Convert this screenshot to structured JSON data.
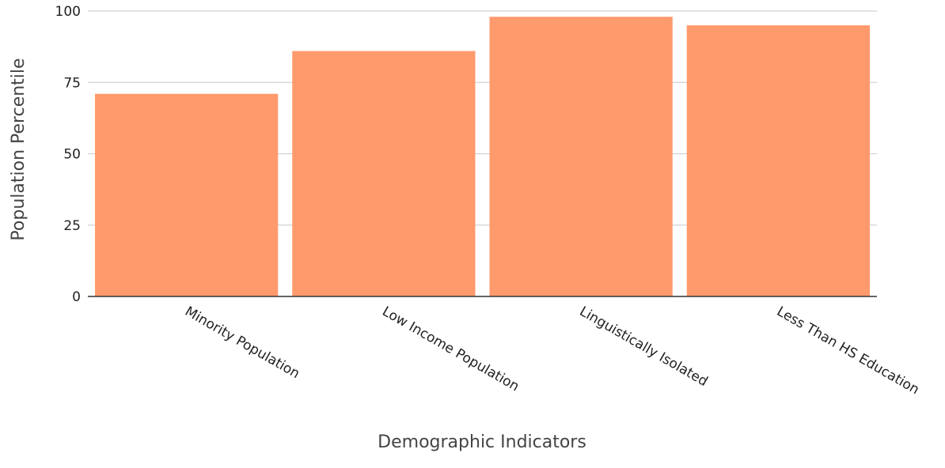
{
  "chart_data": {
    "type": "bar",
    "title": "",
    "xlabel": "Demographic Indicators",
    "ylabel": "Population Percentile",
    "categories": [
      "Minority Population",
      "Low Income Population",
      "Linguistically Isolated",
      "Less Than HS Education"
    ],
    "values": [
      71,
      86,
      98,
      95
    ],
    "ylim": [
      0,
      100
    ],
    "yticks": [
      0,
      25,
      50,
      75,
      100
    ],
    "grid": true,
    "legend": "none",
    "bar_color": "#FF9A6D",
    "grid_color": "#D0D0D8"
  }
}
